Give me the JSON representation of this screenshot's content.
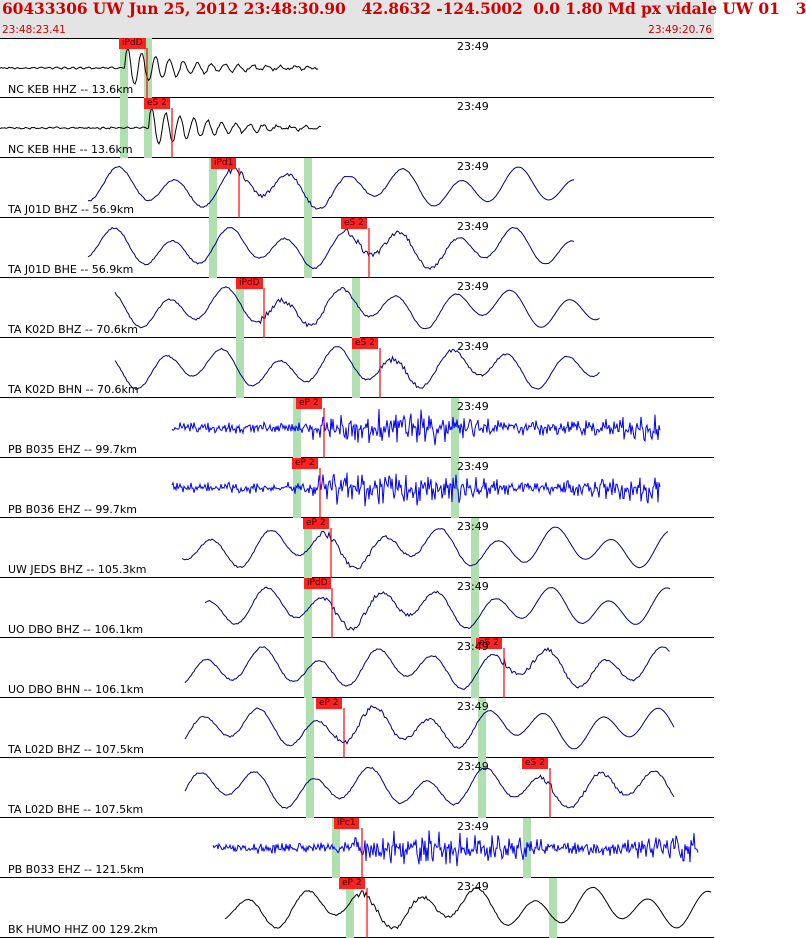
{
  "header": {
    "title": "60433306 UW Jun 25, 2012 23:48:30.90   42.8632 -124.5002  0.0 1.80 Md px vidale UW 01   3",
    "start_time": "23:48:23.41",
    "end_time": "23:49:20.76"
  },
  "colors": {
    "trace_short_period": "#000080",
    "trace_broadband": "#101030",
    "trace_strongmotion": "#0000ff",
    "pick": "#ff0000",
    "window": "#b0e0b0"
  },
  "panels": [
    {
      "label": "NC KEB HHZ -- 13.6km",
      "time": "23:49",
      "pick": "iPdD",
      "kind": "local"
    },
    {
      "label": "NC KEB HHE -- 13.6km",
      "time": "23:49",
      "pick": "eS 2",
      "kind": "local"
    },
    {
      "label": "TA J01D BHZ -- 56.9km",
      "time": "23:49",
      "pick": "iPd1",
      "kind": "bb"
    },
    {
      "label": "TA J01D BHE -- 56.9km",
      "time": "23:49",
      "pick": "eS 2",
      "kind": "bb"
    },
    {
      "label": "TA K02D BHZ -- 70.6km",
      "time": "23:49",
      "pick": "iPdD",
      "kind": "bb"
    },
    {
      "label": "TA K02D BHN -- 70.6km",
      "time": "23:49",
      "pick": "eS 2",
      "kind": "bb"
    },
    {
      "label": "PB B035 EHZ -- 99.7km",
      "time": "23:49",
      "pick": "eP 2",
      "kind": "noise"
    },
    {
      "label": "PB B036 EHZ -- 99.7km",
      "time": "23:49",
      "pick": "eP 2",
      "kind": "noise"
    },
    {
      "label": "UW JEDS BHZ -- 105.3km",
      "time": "23:49",
      "pick": "eP 2",
      "kind": "bb"
    },
    {
      "label": "UO DBO BHZ -- 106.1km",
      "time": "23:49",
      "pick": "iPdD",
      "kind": "bb"
    },
    {
      "label": "UO DBO BHN -- 106.1km",
      "time": "23:49",
      "pick": "eS 2",
      "kind": "bb"
    },
    {
      "label": "TA L02D BHZ -- 107.5km",
      "time": "23:49",
      "pick": "eP 2",
      "kind": "bb"
    },
    {
      "label": "TA L02D BHE -- 107.5km",
      "time": "23:49",
      "pick": "eS 2",
      "kind": "bb"
    },
    {
      "label": "PB B033 EHZ -- 121.5km",
      "time": "23:49",
      "pick": "iPc1",
      "kind": "noise"
    },
    {
      "label": "BK HUMO HHZ 00 129.2km",
      "time": "23:49",
      "pick": "eP 2",
      "kind": "bbk"
    }
  ]
}
